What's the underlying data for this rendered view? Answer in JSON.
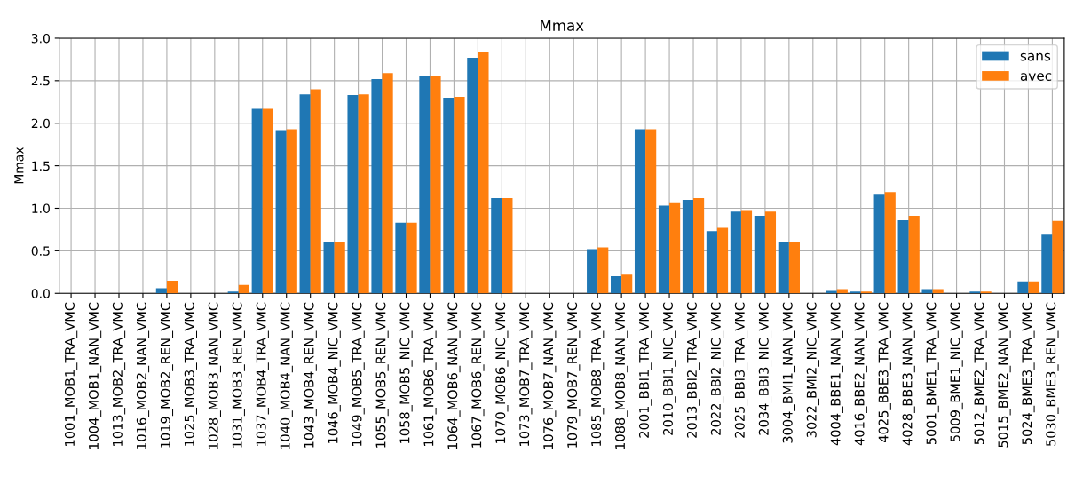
{
  "chart_data": {
    "type": "bar",
    "title": "Mmax",
    "ylabel": "Mmax",
    "categories": [
      "1001_MOB1_TRA_VMC",
      "1004_MOB1_NAN_VMC",
      "1013_MOB2_TRA_VMC",
      "1016_MOB2_NAN_VMC",
      "1019_MOB2_REN_VMC",
      "1025_MOB3_TRA_VMC",
      "1028_MOB3_NAN_VMC",
      "1031_MOB3_REN_VMC",
      "1037_MOB4_TRA_VMC",
      "1040_MOB4_NAN_VMC",
      "1043_MOB4_REN_VMC",
      "1046_MOB4_NIC_VMC",
      "1049_MOB5_TRA_VMC",
      "1055_MOB5_REN_VMC",
      "1058_MOB5_NIC_VMC",
      "1061_MOB6_TRA_VMC",
      "1064_MOB6_NAN_VMC",
      "1067_MOB6_REN_VMC",
      "1070_MOB6_NIC_VMC",
      "1073_MOB7_TRA_VMC",
      "1076_MOB7_NAN_VMC",
      "1079_MOB7_REN_VMC",
      "1085_MOB8_TRA_VMC",
      "1088_MOB8_NAN_VMC",
      "2001_BBI1_TRA_VMC",
      "2010_BBI1_NIC_VMC",
      "2013_BBI2_TRA_VMC",
      "2022_BBI2_NIC_VMC",
      "2025_BBI3_TRA_VMC",
      "2034_BBI3_NIC_VMC",
      "3004_BMI1_NAN_VMC",
      "3022_BMI2_NIC_VMC",
      "4004_BBE1_NAN_VMC",
      "4016_BBE2_NAN_VMC",
      "4025_BBE3_TRA_VMC",
      "4028_BBE3_NAN_VMC",
      "5001_BME1_TRA_VMC",
      "5009_BME1_NIC_VMC",
      "5012_BME2_TRA_VMC",
      "5015_BME2_NAN_VMC",
      "5024_BME3_TRA_VMC",
      "5030_BME3_REN_VMC"
    ],
    "series": [
      {
        "name": "sans",
        "color": "#1f77b4",
        "values": [
          0,
          0,
          0,
          0,
          0.06,
          0,
          0,
          0.02,
          2.17,
          1.92,
          2.34,
          0.6,
          2.33,
          2.52,
          0.83,
          2.55,
          2.3,
          2.77,
          1.12,
          0,
          0,
          0,
          0.52,
          0.2,
          1.93,
          1.03,
          1.1,
          0.73,
          0.96,
          0.91,
          0.6,
          0,
          0.03,
          0.02,
          1.17,
          0.86,
          0.05,
          0,
          0.02,
          0,
          0.14,
          0.7
        ]
      },
      {
        "name": "avec",
        "color": "#ff7f0e",
        "values": [
          0,
          0,
          0,
          0,
          0.15,
          0,
          0,
          0.1,
          2.17,
          1.93,
          2.4,
          0.6,
          2.34,
          2.59,
          0.83,
          2.55,
          2.31,
          2.84,
          1.12,
          0,
          0,
          0,
          0.54,
          0.22,
          1.93,
          1.07,
          1.12,
          0.77,
          0.98,
          0.96,
          0.6,
          0,
          0.05,
          0.02,
          1.19,
          0.91,
          0.05,
          0,
          0.02,
          0,
          0.14,
          0.85
        ]
      }
    ],
    "ylim": [
      0,
      3.0
    ],
    "yticks": [
      {
        "value": 0,
        "label": "0.0"
      },
      {
        "value": 0.5,
        "label": "0.5"
      },
      {
        "value": 1,
        "label": "1.0"
      },
      {
        "value": 1.5,
        "label": "1.5"
      },
      {
        "value": 2,
        "label": "2.0"
      },
      {
        "value": 2.5,
        "label": "2.5"
      },
      {
        "value": 3,
        "label": "3.0"
      }
    ],
    "grid": true,
    "legend": "top right"
  }
}
